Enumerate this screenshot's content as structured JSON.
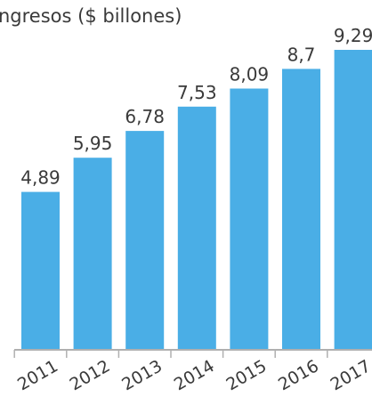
{
  "chart_data": {
    "type": "bar",
    "title": "ngresos ($ billones)",
    "categories": [
      "2011",
      "2012",
      "2013",
      "2014",
      "2015",
      "2016",
      "2017"
    ],
    "values": [
      4.89,
      5.95,
      6.78,
      7.53,
      8.09,
      8.7,
      9.29
    ],
    "value_labels": [
      "4,89",
      "5,95",
      "6,78",
      "7,53",
      "8,09",
      "8,7",
      "9,29"
    ],
    "ylim": [
      0,
      9.29
    ],
    "grid": false,
    "colors": {
      "bar": "#4aaee6",
      "axis": "#b0b0b0",
      "text": "#3a3a3a"
    }
  }
}
